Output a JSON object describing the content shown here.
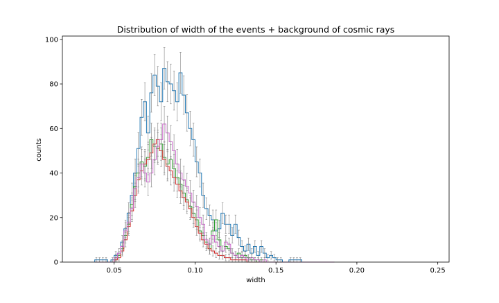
{
  "chart_data": {
    "type": "step-histogram",
    "title": "Distribution of width of the events + background of cosmic rays",
    "xlabel": "width",
    "ylabel": "counts",
    "xlim": [
      0.018,
      0.257
    ],
    "ylim": [
      0,
      101.5
    ],
    "xticks": [
      0.05,
      0.1,
      0.15,
      0.2,
      0.25
    ],
    "xtick_labels": [
      "0.05",
      "0.10",
      "0.15",
      "0.20",
      "0.25"
    ],
    "yticks": [
      0,
      20,
      40,
      60,
      80,
      100
    ],
    "ytick_labels": [
      "0",
      "20",
      "40",
      "60",
      "80",
      "100"
    ],
    "grid": false,
    "legend": false,
    "bins": {
      "start": 0.038,
      "width": 0.002,
      "count": 74
    },
    "series": [
      {
        "color": "#1f77b4",
        "counts": [
          1,
          1,
          1,
          1,
          0,
          1,
          3,
          4,
          9,
          15,
          22,
          30,
          40,
          51,
          65,
          72,
          58,
          76,
          84,
          79,
          72,
          87,
          81,
          80,
          77,
          72,
          85,
          75,
          67,
          60,
          55,
          45,
          40,
          30,
          24,
          21,
          19,
          14,
          15,
          22,
          17,
          17,
          12,
          17,
          11,
          7,
          5,
          8,
          4,
          7,
          3,
          7,
          4,
          2,
          3,
          2,
          1,
          1,
          0,
          0,
          1,
          1,
          1,
          1,
          0,
          0,
          0,
          0,
          0,
          0,
          0,
          0,
          0,
          0
        ]
      },
      {
        "color": "#2ca02c",
        "counts": [
          0,
          0,
          0,
          0,
          0,
          0,
          2,
          3,
          6,
          12,
          17,
          26,
          34,
          40,
          45,
          43,
          47,
          55,
          52,
          51,
          53,
          47,
          44,
          46,
          42,
          38,
          35,
          31,
          28,
          25,
          22,
          19,
          14,
          12,
          9,
          6,
          14,
          19,
          10,
          5,
          7,
          6,
          4,
          3,
          4,
          2,
          3,
          2,
          1,
          1,
          0,
          1,
          0,
          0,
          0,
          0,
          0,
          0,
          0,
          0,
          0,
          0,
          0,
          0,
          0,
          0,
          0,
          0,
          0,
          0,
          0,
          0,
          0,
          0
        ]
      },
      {
        "color": "#d62728",
        "counts": [
          0,
          0,
          0,
          0,
          0,
          0,
          1,
          2,
          5,
          10,
          16,
          23,
          30,
          37,
          41,
          44,
          46,
          49,
          53,
          55,
          50,
          46,
          43,
          41,
          38,
          35,
          32,
          29,
          27,
          24,
          20,
          16,
          13,
          10,
          8,
          6,
          5,
          4,
          3,
          3,
          2,
          2,
          1,
          1,
          1,
          1,
          1,
          0,
          0,
          0,
          0,
          0,
          0,
          0,
          0,
          0,
          0,
          0,
          0,
          0,
          0,
          0,
          0,
          0,
          0,
          0,
          0,
          0,
          0,
          0,
          0,
          0,
          0,
          0
        ]
      },
      {
        "color": "#cc66cc",
        "counts": [
          0,
          0,
          0,
          0,
          0,
          0,
          2,
          4,
          7,
          14,
          18,
          24,
          33,
          38,
          44,
          40,
          36,
          40,
          46,
          52,
          55,
          62,
          58,
          54,
          50,
          44,
          40,
          37,
          34,
          31,
          27,
          25,
          20,
          17,
          10,
          8,
          12,
          9,
          7,
          5,
          9,
          8,
          4,
          3,
          2,
          3,
          2,
          1,
          2,
          1,
          1,
          0,
          1,
          0,
          0,
          0,
          0,
          0,
          0,
          0,
          0,
          0,
          0,
          0,
          0,
          0,
          0,
          0,
          0,
          0,
          0,
          0,
          0,
          0
        ]
      }
    ],
    "errorbar_color": "#7f7f7f"
  }
}
